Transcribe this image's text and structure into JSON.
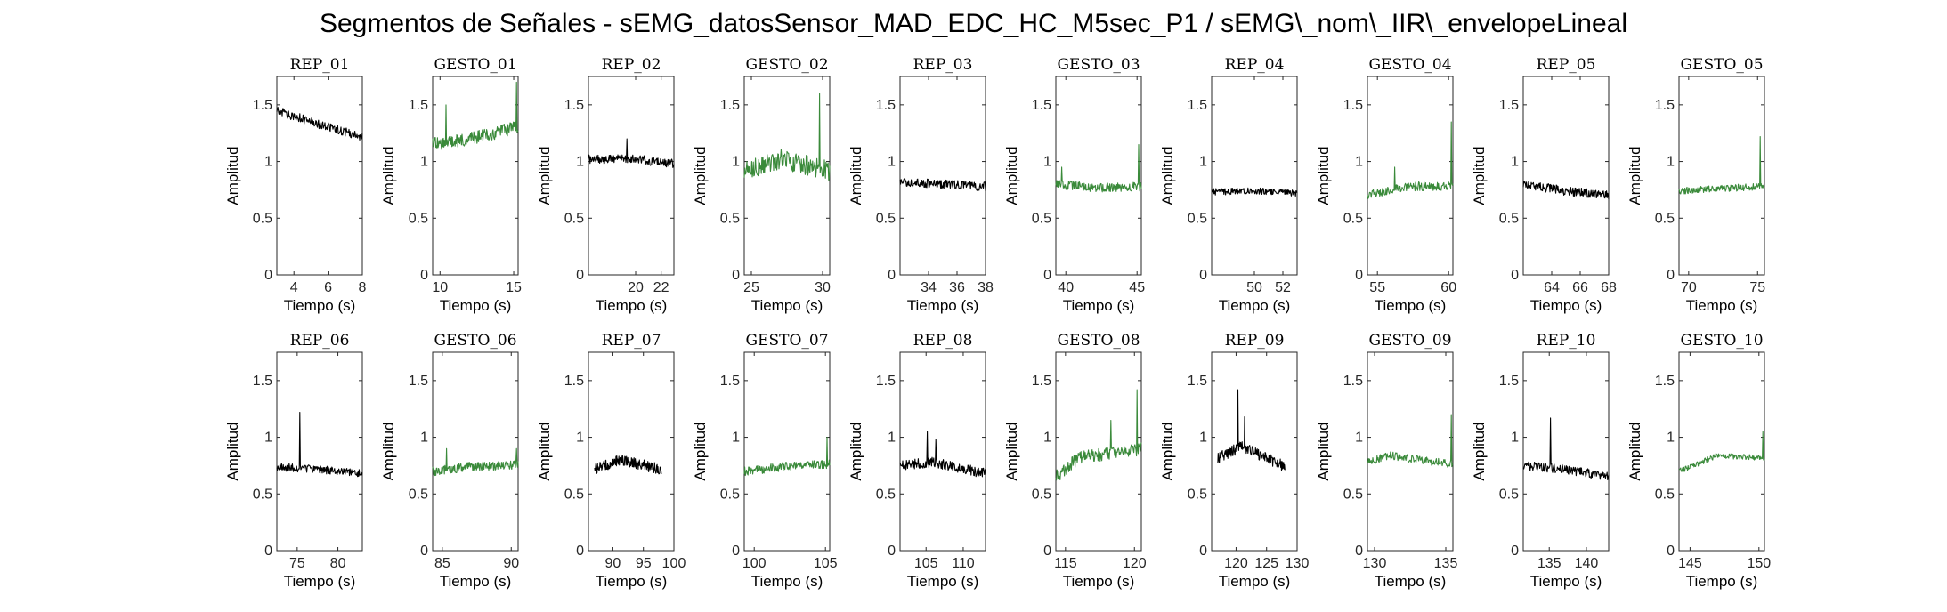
{
  "title": "Segmentos de Señales - sEMG_datosSensor_MAD_EDC_HC_M5sec_P1 / sEMG\\_nom\\_IIR\\_envelopeLineal",
  "colors": {
    "rep": "#000000",
    "gesto": "#3a8a3a"
  },
  "chart_data": {
    "type": "line",
    "xlabel": "Tiempo (s)",
    "ylabel": "Amplitud",
    "ylim": [
      0,
      1.75
    ],
    "yticks": [
      0,
      0.5,
      1,
      1.5
    ],
    "grid": false,
    "panels": [
      {
        "label": "REP_01",
        "kind": "rep",
        "xlim": [
          3,
          8
        ],
        "xticks": [
          4,
          6,
          8
        ],
        "waypoints": [
          [
            3,
            1.45
          ],
          [
            5,
            1.35
          ],
          [
            8,
            1.22
          ]
        ],
        "noise": 0.04,
        "spikes": []
      },
      {
        "label": "GESTO_01",
        "kind": "gesto",
        "xlim": [
          9.5,
          15.3
        ],
        "xticks": [
          10,
          15
        ],
        "waypoints": [
          [
            9.5,
            1.15
          ],
          [
            12,
            1.2
          ],
          [
            15.3,
            1.3
          ]
        ],
        "noise": 0.06,
        "spikes": [
          [
            10.4,
            1.5
          ],
          [
            15.2,
            1.7
          ]
        ]
      },
      {
        "label": "REP_02",
        "kind": "rep",
        "xlim": [
          16.3,
          23
        ],
        "xticks": [
          20,
          22
        ],
        "waypoints": [
          [
            16.3,
            1.02
          ],
          [
            20,
            1.02
          ],
          [
            23,
            0.98
          ]
        ],
        "noise": 0.04,
        "spikes": [
          [
            19.3,
            1.2
          ]
        ]
      },
      {
        "label": "GESTO_02",
        "kind": "gesto",
        "xlim": [
          24.5,
          30.5
        ],
        "xticks": [
          25,
          30
        ],
        "waypoints": [
          [
            24.5,
            0.92
          ],
          [
            27,
            1.02
          ],
          [
            30.5,
            0.92
          ]
        ],
        "noise": 0.09,
        "spikes": [
          [
            29.8,
            1.6
          ]
        ]
      },
      {
        "label": "REP_03",
        "kind": "rep",
        "xlim": [
          32,
          38
        ],
        "xticks": [
          34,
          36,
          38
        ],
        "waypoints": [
          [
            32,
            0.82
          ],
          [
            35,
            0.8
          ],
          [
            38,
            0.78
          ]
        ],
        "noise": 0.04,
        "spikes": []
      },
      {
        "label": "GESTO_03",
        "kind": "gesto",
        "xlim": [
          39.3,
          45.3
        ],
        "xticks": [
          40,
          45
        ],
        "waypoints": [
          [
            39.3,
            0.8
          ],
          [
            42,
            0.77
          ],
          [
            45.3,
            0.78
          ]
        ],
        "noise": 0.04,
        "spikes": [
          [
            39.7,
            0.95
          ],
          [
            45.1,
            1.15
          ]
        ]
      },
      {
        "label": "REP_04",
        "kind": "rep",
        "xlim": [
          47,
          53
        ],
        "xticks": [
          50,
          52
        ],
        "waypoints": [
          [
            47,
            0.73
          ],
          [
            50,
            0.74
          ],
          [
            53,
            0.72
          ]
        ],
        "noise": 0.03,
        "spikes": []
      },
      {
        "label": "GESTO_04",
        "kind": "gesto",
        "xlim": [
          54.3,
          60.3
        ],
        "xticks": [
          55,
          60
        ],
        "waypoints": [
          [
            54.3,
            0.7
          ],
          [
            57,
            0.78
          ],
          [
            60.3,
            0.78
          ]
        ],
        "noise": 0.04,
        "spikes": [
          [
            56.2,
            0.95
          ],
          [
            60.2,
            1.35
          ]
        ]
      },
      {
        "label": "REP_05",
        "kind": "rep",
        "xlim": [
          62,
          68
        ],
        "xticks": [
          64,
          66,
          68
        ],
        "waypoints": [
          [
            62,
            0.8
          ],
          [
            65,
            0.74
          ],
          [
            68,
            0.7
          ]
        ],
        "noise": 0.04,
        "spikes": []
      },
      {
        "label": "GESTO_05",
        "kind": "gesto",
        "xlim": [
          69.3,
          75.5
        ],
        "xticks": [
          70,
          75
        ],
        "waypoints": [
          [
            69.3,
            0.74
          ],
          [
            72,
            0.76
          ],
          [
            75.5,
            0.78
          ]
        ],
        "noise": 0.03,
        "spikes": [
          [
            75.2,
            1.22
          ]
        ]
      },
      {
        "label": "REP_06",
        "kind": "rep",
        "xlim": [
          72.5,
          83
        ],
        "xticks": [
          75,
          80
        ],
        "waypoints": [
          [
            72.5,
            0.74
          ],
          [
            77,
            0.72
          ],
          [
            83,
            0.68
          ]
        ],
        "noise": 0.035,
        "spikes": [
          [
            75.3,
            1.22
          ]
        ]
      },
      {
        "label": "GESTO_06",
        "kind": "gesto",
        "xlim": [
          84.3,
          90.5
        ],
        "xticks": [
          85,
          90
        ],
        "waypoints": [
          [
            84.3,
            0.7
          ],
          [
            87,
            0.74
          ],
          [
            90.5,
            0.76
          ]
        ],
        "noise": 0.04,
        "spikes": [
          [
            85.3,
            0.9
          ],
          [
            90.4,
            0.9
          ]
        ]
      },
      {
        "label": "REP_07",
        "kind": "rep",
        "xlim": [
          86,
          100
        ],
        "xticks": [
          90,
          95,
          100
        ],
        "waypoints": [
          [
            87,
            0.72
          ],
          [
            91,
            0.8
          ],
          [
            98,
            0.72
          ]
        ],
        "noise": 0.05,
        "spikes": []
      },
      {
        "label": "GESTO_07",
        "kind": "gesto",
        "xlim": [
          99.3,
          105.3
        ],
        "xticks": [
          100,
          105
        ],
        "waypoints": [
          [
            99.3,
            0.7
          ],
          [
            102,
            0.74
          ],
          [
            105.3,
            0.76
          ]
        ],
        "noise": 0.04,
        "spikes": [
          [
            105.1,
            1.0
          ]
        ]
      },
      {
        "label": "REP_08",
        "kind": "rep",
        "xlim": [
          101.5,
          113
        ],
        "xticks": [
          105,
          110
        ],
        "waypoints": [
          [
            101.5,
            0.75
          ],
          [
            106,
            0.78
          ],
          [
            113,
            0.68
          ]
        ],
        "noise": 0.045,
        "spikes": [
          [
            105.2,
            1.05
          ],
          [
            106.3,
            0.98
          ]
        ]
      },
      {
        "label": "GESTO_08",
        "kind": "gesto",
        "xlim": [
          114.3,
          120.5
        ],
        "xticks": [
          115,
          120
        ],
        "waypoints": [
          [
            114.3,
            0.65
          ],
          [
            116,
            0.82
          ],
          [
            120.5,
            0.9
          ]
        ],
        "noise": 0.06,
        "spikes": [
          [
            118.3,
            1.15
          ],
          [
            120.2,
            1.42
          ]
        ]
      },
      {
        "label": "REP_09",
        "kind": "rep",
        "xlim": [
          116,
          130
        ],
        "xticks": [
          120,
          125,
          130
        ],
        "waypoints": [
          [
            117,
            0.82
          ],
          [
            121,
            0.92
          ],
          [
            128,
            0.74
          ]
        ],
        "noise": 0.05,
        "spikes": [
          [
            120.3,
            1.42
          ],
          [
            121.4,
            1.18
          ]
        ]
      },
      {
        "label": "GESTO_09",
        "kind": "gesto",
        "xlim": [
          129.5,
          135.5
        ],
        "xticks": [
          130,
          135
        ],
        "waypoints": [
          [
            129.5,
            0.78
          ],
          [
            131,
            0.84
          ],
          [
            135.5,
            0.76
          ]
        ],
        "noise": 0.035,
        "spikes": [
          [
            135.4,
            1.2
          ]
        ]
      },
      {
        "label": "REP_10",
        "kind": "rep",
        "xlim": [
          131.5,
          143
        ],
        "xticks": [
          135,
          140
        ],
        "waypoints": [
          [
            131.5,
            0.75
          ],
          [
            137,
            0.72
          ],
          [
            143,
            0.65
          ]
        ],
        "noise": 0.04,
        "spikes": [
          [
            135.2,
            1.17
          ]
        ]
      },
      {
        "label": "GESTO_10",
        "kind": "gesto",
        "xlim": [
          144.2,
          150.4
        ],
        "xticks": [
          145,
          150
        ],
        "waypoints": [
          [
            144.2,
            0.7
          ],
          [
            147,
            0.84
          ],
          [
            150.4,
            0.82
          ]
        ],
        "noise": 0.025,
        "spikes": [
          [
            150.3,
            1.05
          ]
        ]
      }
    ]
  }
}
